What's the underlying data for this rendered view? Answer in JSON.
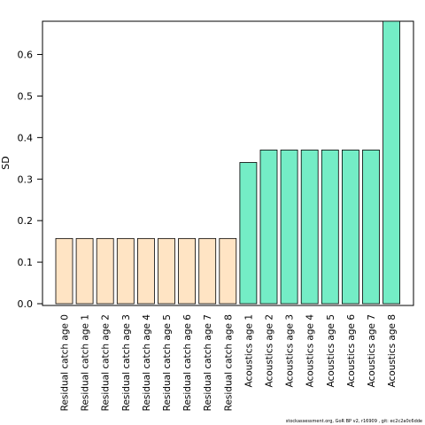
{
  "chart_data": {
    "type": "bar",
    "ylabel": "SD",
    "xlabel": "",
    "ylim": [
      0,
      0.68
    ],
    "yticks": [
      0.0,
      0.1,
      0.2,
      0.3,
      0.4,
      0.5,
      0.6
    ],
    "ytick_labels": [
      "0.0",
      "0.1",
      "0.2",
      "0.3",
      "0.4",
      "0.5",
      "0.6"
    ],
    "grid": false,
    "categories": [
      "Residual catch age 0",
      "Residual catch age 1",
      "Residual catch age 2",
      "Residual catch age 3",
      "Residual catch age 4",
      "Residual catch age 5",
      "Residual catch age 6",
      "Residual catch age 7",
      "Residual catch age 8",
      "Acoustics age 1",
      "Acoustics age 2",
      "Acoustics age 3",
      "Acoustics age 4",
      "Acoustics age 5",
      "Acoustics age 6",
      "Acoustics age 7",
      "Acoustics age 8"
    ],
    "values": [
      0.157,
      0.157,
      0.157,
      0.157,
      0.157,
      0.157,
      0.157,
      0.157,
      0.157,
      0.34,
      0.37,
      0.37,
      0.37,
      0.37,
      0.37,
      0.37,
      0.68
    ],
    "colors": [
      "#FFE4C4",
      "#FFE4C4",
      "#FFE4C4",
      "#FFE4C4",
      "#FFE4C4",
      "#FFE4C4",
      "#FFE4C4",
      "#FFE4C4",
      "#FFE4C4",
      "#74EDC6",
      "#74EDC6",
      "#74EDC6",
      "#74EDC6",
      "#74EDC6",
      "#74EDC6",
      "#74EDC6",
      "#74EDC6"
    ]
  },
  "footer": {
    "text": "stockassessment.org, GoR BP v2, r16909 , git: ec2c2a0c6dde"
  }
}
